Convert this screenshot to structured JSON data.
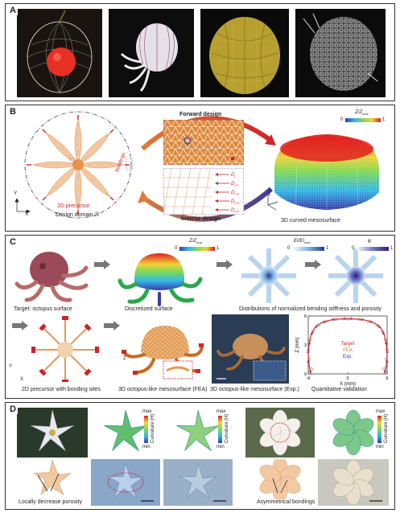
{
  "panels": {
    "a": {
      "label": "A"
    },
    "b": {
      "label": "B",
      "forward": "Forward design",
      "inverse": "Inverse design",
      "precursor": "2D precursor",
      "bondings": "Bondings",
      "domain": "Design domain ℛ",
      "surface": "3D curved mesosurface",
      "cbar_title": "Z/Z",
      "cbar_sub": "max",
      "cbar_min": "0",
      "cbar_max": "1",
      "d_labels": [
        "D",
        "D",
        "D",
        "D",
        "D"
      ],
      "d_subs": [
        "i",
        "i+1",
        "i+2",
        "i+3",
        "i+4"
      ],
      "axes": {
        "y": "Y",
        "x": "X",
        "z": "Z"
      }
    },
    "c": {
      "label": "C",
      "target": "Target: octopus surface",
      "discretized": "Discretized surface",
      "distributions": "Distributions of normalized bending stiffness and porosity",
      "precursor": "2D precursor with bonding sites",
      "fea": "3D octopus-like mesosurface (FEA)",
      "exp": "3D octopus-like mesosurface (Exp.)",
      "validation": "Quantitative validation",
      "cbar1_title": "Z/Z",
      "cbar1_sub": "max",
      "cbar2_title": "EI/EI",
      "cbar2_sub": "max",
      "cbar3_title": "φ",
      "cbar_min": "0",
      "cbar_max": "1",
      "legend": [
        "Target",
        "FEA",
        "Exp."
      ],
      "axes": {
        "y": "Y",
        "x": "X",
        "z": "Z"
      }
    },
    "d": {
      "label": "D",
      "porosity": "Locally decrease porosity",
      "asym": "Asymmetrical bondings",
      "cb_max": "max",
      "cb_min": "min",
      "cb_title": "Curvature (H)"
    }
  },
  "chart_data": {
    "type": "scatter",
    "xlabel": "X (mm)",
    "ylabel": "Z (mm)",
    "xlim": [
      -6,
      6
    ],
    "ylim": [
      0,
      6
    ],
    "xticks": [
      -6,
      0,
      6
    ],
    "yticks": [
      0,
      3,
      6
    ],
    "series": [
      {
        "name": "Target",
        "points": [
          [
            -5.6,
            0
          ],
          [
            -5.9,
            1
          ],
          [
            -6,
            2
          ],
          [
            -5.9,
            3
          ],
          [
            -5.6,
            4
          ],
          [
            -5.0,
            4.8
          ],
          [
            -4.0,
            5.3
          ],
          [
            -2.5,
            5.6
          ],
          [
            -1,
            5.7
          ],
          [
            0,
            5.7
          ],
          [
            1,
            5.7
          ],
          [
            2.5,
            5.6
          ],
          [
            4.0,
            5.3
          ],
          [
            5.0,
            4.8
          ],
          [
            5.6,
            4
          ],
          [
            5.9,
            3
          ],
          [
            6,
            2
          ],
          [
            5.9,
            1
          ],
          [
            5.6,
            0
          ]
        ]
      },
      {
        "name": "FEA",
        "points": [
          [
            -5.5,
            0.5
          ],
          [
            -5.85,
            1.5
          ],
          [
            -5.95,
            2.5
          ],
          [
            -5.75,
            3.5
          ],
          [
            -5.3,
            4.4
          ],
          [
            -4.5,
            5.05
          ],
          [
            -3.2,
            5.45
          ],
          [
            -1.8,
            5.65
          ],
          [
            0,
            5.7
          ],
          [
            1.8,
            5.65
          ],
          [
            3.2,
            5.45
          ],
          [
            4.5,
            5.05
          ],
          [
            5.3,
            4.4
          ],
          [
            5.75,
            3.5
          ],
          [
            5.95,
            2.5
          ],
          [
            5.85,
            1.5
          ],
          [
            5.5,
            0.5
          ]
        ]
      },
      {
        "name": "Exp.",
        "points": [
          [
            -5.7,
            0.3
          ],
          [
            -6.0,
            1.3
          ],
          [
            -6.05,
            2.3
          ],
          [
            -5.85,
            3.2
          ],
          [
            -5.45,
            4.2
          ],
          [
            -4.8,
            4.9
          ],
          [
            -3.6,
            5.4
          ],
          [
            -2.2,
            5.65
          ],
          [
            -0.5,
            5.75
          ],
          [
            0.5,
            5.75
          ],
          [
            2.2,
            5.65
          ],
          [
            3.6,
            5.4
          ],
          [
            4.8,
            4.9
          ],
          [
            5.45,
            4.2
          ],
          [
            5.85,
            3.2
          ],
          [
            6.05,
            2.3
          ],
          [
            6.0,
            1.3
          ],
          [
            5.7,
            0.3
          ]
        ]
      }
    ]
  }
}
